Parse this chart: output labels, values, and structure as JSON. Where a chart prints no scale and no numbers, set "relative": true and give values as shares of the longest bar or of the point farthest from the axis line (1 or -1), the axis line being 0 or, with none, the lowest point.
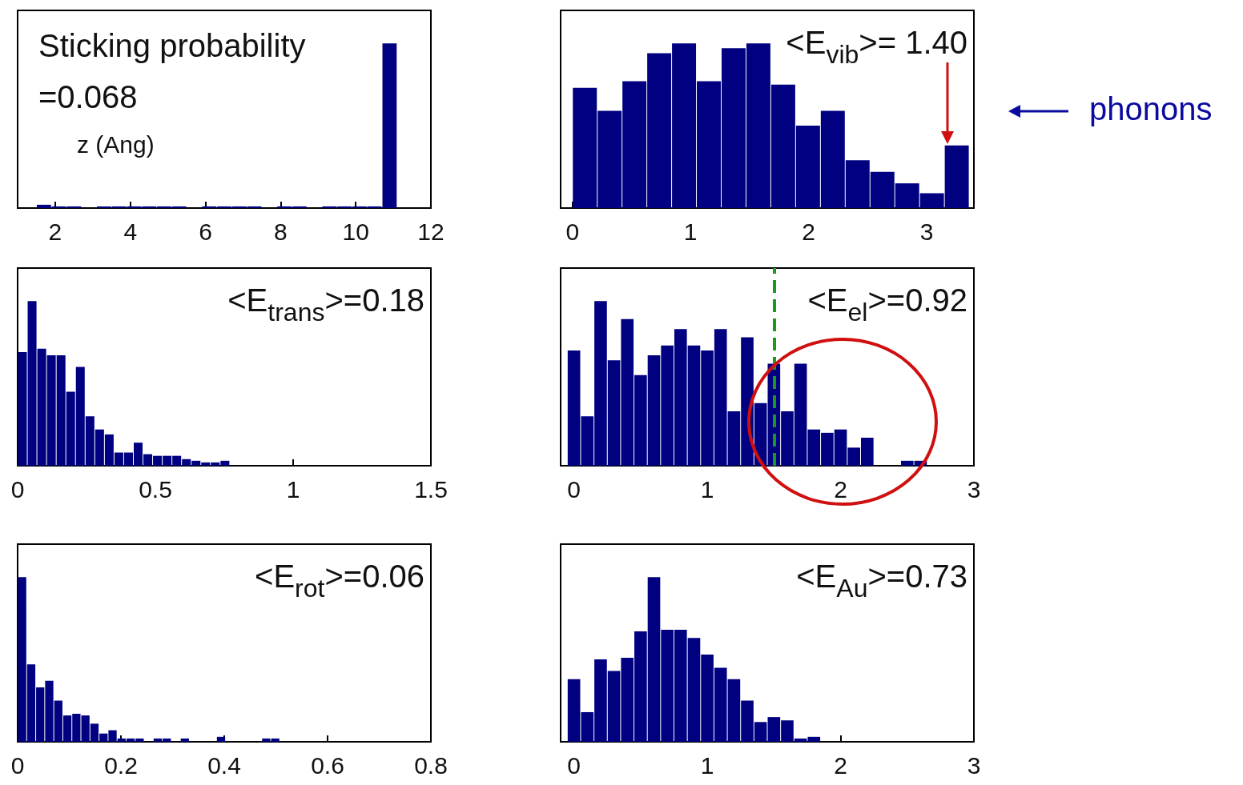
{
  "chart_data": [
    {
      "type": "bar",
      "relative": true,
      "title": "Sticking probability",
      "annotations": [
        "=0.068"
      ],
      "xlabel": "z (Ang)",
      "color": "#000080",
      "xlim": [
        1,
        12
      ],
      "xticks": [
        2,
        4,
        6,
        8,
        10,
        12
      ],
      "x": [
        1.7,
        2.1,
        2.5,
        2.9,
        3.3,
        3.7,
        4.1,
        4.5,
        4.9,
        5.3,
        5.7,
        6.1,
        6.5,
        6.9,
        7.3,
        7.7,
        8.1,
        8.5,
        8.9,
        9.3,
        9.7,
        10.1,
        10.5,
        10.9
      ],
      "values": [
        0.02,
        0.01,
        0.01,
        0,
        0.01,
        0.01,
        0.01,
        0.01,
        0.01,
        0.01,
        0,
        0.01,
        0.01,
        0.01,
        0.01,
        0,
        0.01,
        0.01,
        0,
        0.01,
        0.01,
        0.01,
        0.01,
        1
      ]
    },
    {
      "type": "bar",
      "relative": true,
      "annotations": [
        "<E$_{vib}$>= 1.40",
        "phonons"
      ],
      "color": "#000080",
      "xlim": [
        -0.1,
        3.4
      ],
      "xticks": [
        0,
        1,
        2,
        3
      ],
      "x": [
        0.105,
        0.315,
        0.525,
        0.735,
        0.945,
        1.155,
        1.365,
        1.575,
        1.785,
        1.995,
        2.205,
        2.415,
        2.625,
        2.835,
        3.045,
        3.255
      ],
      "values": [
        0.73,
        0.59,
        0.77,
        0.94,
        1.0,
        0.77,
        0.97,
        1.0,
        0.75,
        0.5,
        0.59,
        0.29,
        0.22,
        0.15,
        0.09,
        0.38
      ]
    },
    {
      "type": "bar",
      "relative": true,
      "annotations": [
        "<E$_{trans}$>=0.18"
      ],
      "color": "#000080",
      "xlim": [
        0,
        1.5
      ],
      "xticks": [
        0,
        0.5,
        1,
        1.5
      ],
      "x": [
        0.0175,
        0.0525,
        0.0875,
        0.1225,
        0.1575,
        0.1925,
        0.2275,
        0.2625,
        0.2975,
        0.3325,
        0.3675,
        0.4025,
        0.4375,
        0.4725,
        0.5075,
        0.5425,
        0.5775,
        0.6125,
        0.6475,
        0.6825,
        0.7175,
        0.7525
      ],
      "values": [
        0.69,
        1.0,
        0.71,
        0.67,
        0.67,
        0.45,
        0.6,
        0.3,
        0.22,
        0.19,
        0.08,
        0.08,
        0.14,
        0.07,
        0.06,
        0.06,
        0.06,
        0.04,
        0.03,
        0.02,
        0.02,
        0.03
      ]
    },
    {
      "type": "bar",
      "relative": true,
      "annotations": [
        "<E$_{el}$>=0.92"
      ],
      "color": "#000080",
      "xlim": [
        -0.1,
        3
      ],
      "xticks": [
        0,
        1,
        2,
        3
      ],
      "ref_lines": [
        {
          "axis": "x",
          "value": 1.5,
          "color": "#1a9a1a",
          "line_style": "dashed"
        }
      ],
      "x": [
        0,
        0.1,
        0.2,
        0.3,
        0.4,
        0.5,
        0.6,
        0.7,
        0.8,
        0.9,
        1.0,
        1.1,
        1.2,
        1.3,
        1.4,
        1.5,
        1.6,
        1.7,
        1.8,
        1.9,
        2.0,
        2.1,
        2.2,
        2.3,
        2.4,
        2.5,
        2.6
      ],
      "values": [
        0.7,
        0.3,
        1.0,
        0.64,
        0.89,
        0.55,
        0.67,
        0.73,
        0.83,
        0.73,
        0.7,
        0.83,
        0.33,
        0.78,
        0.38,
        0.62,
        0.33,
        0.62,
        0.22,
        0.2,
        0.22,
        0.11,
        0.17,
        0,
        0,
        0.03,
        0.03
      ]
    },
    {
      "type": "bar",
      "relative": true,
      "annotations": [
        "<E$_{rot}$>=0.06"
      ],
      "color": "#000080",
      "xlim": [
        0,
        0.8
      ],
      "xticks": [
        0,
        0.2,
        0.4,
        0.6,
        0.8
      ],
      "x": [
        0.00875,
        0.02625,
        0.04375,
        0.06125,
        0.07875,
        0.09625,
        0.11375,
        0.13125,
        0.14875,
        0.16625,
        0.18375,
        0.20125,
        0.21875,
        0.23625,
        0.25375,
        0.27125,
        0.28875,
        0.30625,
        0.32375,
        0.34125,
        0.35875,
        0.37625,
        0.39375,
        0.41125,
        0.42875,
        0.44625,
        0.46375,
        0.48125,
        0.49875
      ],
      "values": [
        1.0,
        0.47,
        0.33,
        0.37,
        0.25,
        0.16,
        0.17,
        0.16,
        0.11,
        0.05,
        0.07,
        0.02,
        0.02,
        0.02,
        0,
        0.02,
        0.02,
        0,
        0.02,
        0,
        0,
        0,
        0.03,
        0,
        0,
        0,
        0,
        0.02,
        0.02
      ]
    },
    {
      "type": "bar",
      "relative": true,
      "annotations": [
        "<E$_{Au}$>=0.73"
      ],
      "color": "#000080",
      "xlim": [
        -0.1,
        3
      ],
      "xticks": [
        0,
        1,
        2,
        3
      ],
      "x": [
        0,
        0.1,
        0.2,
        0.3,
        0.4,
        0.5,
        0.6,
        0.7,
        0.8,
        0.9,
        1.0,
        1.1,
        1.2,
        1.3,
        1.4,
        1.5,
        1.6,
        1.7,
        1.8
      ],
      "values": [
        0.38,
        0.18,
        0.5,
        0.43,
        0.51,
        0.67,
        1.0,
        0.68,
        0.68,
        0.63,
        0.53,
        0.45,
        0.38,
        0.25,
        0.12,
        0.15,
        0.13,
        0.02,
        0.03
      ]
    }
  ]
}
